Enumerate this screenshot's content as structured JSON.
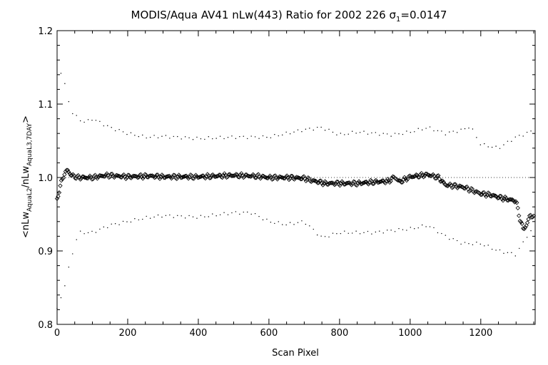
{
  "chart_data": {
    "type": "scatter",
    "title_parts": {
      "main": "MODIS/Aqua AV41 nLw(443) Ratio for 2002 226 ",
      "sigma": "σ",
      "sigma_sub": "1",
      "value": "=0.0147"
    },
    "xlabel": "Scan Pixel",
    "ylabel_parts": {
      "open": "<nLw",
      "sub1": "AquaL2",
      "mid": "/nLw",
      "sub2": "AquaL3,7DAY",
      "close": ">"
    },
    "xlim": [
      0,
      1354
    ],
    "ylim": [
      0.8,
      1.2
    ],
    "x_ticks": [
      0,
      200,
      400,
      600,
      800,
      1000,
      1200
    ],
    "y_ticks": [
      0.8,
      0.9,
      1.0,
      1.1,
      1.2
    ],
    "x_tick_labels": [
      "0",
      "200",
      "400",
      "600",
      "800",
      "1000",
      "1200"
    ],
    "y_tick_labels": [
      "0.8",
      "0.9",
      "1.0",
      "1.1",
      "1.2"
    ],
    "reference_line": 1.0,
    "series": [
      {
        "role": "mean ratio (diamond markers)",
        "x": [
          0,
          10,
          20,
          30,
          40,
          60,
          80,
          100,
          140,
          200,
          260,
          300,
          400,
          500,
          560,
          600,
          650,
          700,
          720,
          760,
          800,
          850,
          900,
          940,
          955,
          970,
          1000,
          1050,
          1080,
          1100,
          1150,
          1200,
          1230,
          1260,
          1300,
          1310,
          1320,
          1330,
          1340,
          1350
        ],
        "y": [
          0.97,
          0.99,
          1.005,
          1.01,
          1.003,
          1.0,
          1.0,
          1.0,
          1.003,
          1.001,
          1.002,
          1.001,
          1.001,
          1.003,
          1.002,
          1.0,
          1.0,
          0.999,
          0.996,
          0.992,
          0.992,
          0.992,
          0.994,
          0.995,
          1.001,
          0.994,
          1.001,
          1.004,
          1.0,
          0.99,
          0.987,
          0.978,
          0.976,
          0.972,
          0.968,
          0.945,
          0.93,
          0.935,
          0.95,
          0.945
        ]
      },
      {
        "role": "upper envelope (dots)",
        "x": [
          0,
          20,
          40,
          60,
          80,
          100,
          150,
          200,
          250,
          300,
          400,
          500,
          600,
          650,
          700,
          750,
          800,
          850,
          900,
          950,
          1000,
          1050,
          1100,
          1150,
          1170,
          1200,
          1250,
          1300,
          1330,
          1350
        ],
        "y": [
          1.16,
          1.13,
          1.09,
          1.08,
          1.075,
          1.08,
          1.068,
          1.06,
          1.055,
          1.056,
          1.053,
          1.055,
          1.055,
          1.06,
          1.065,
          1.068,
          1.058,
          1.062,
          1.06,
          1.058,
          1.062,
          1.068,
          1.06,
          1.065,
          1.07,
          1.045,
          1.04,
          1.055,
          1.06,
          1.065
        ]
      },
      {
        "role": "lower envelope (dots)",
        "x": [
          0,
          20,
          40,
          60,
          80,
          100,
          150,
          200,
          250,
          300,
          400,
          500,
          550,
          600,
          650,
          700,
          750,
          800,
          850,
          900,
          950,
          1000,
          1050,
          1100,
          1150,
          1200,
          1250,
          1300,
          1330,
          1350
        ],
        "y": [
          0.82,
          0.85,
          0.89,
          0.925,
          0.925,
          0.925,
          0.935,
          0.94,
          0.945,
          0.948,
          0.946,
          0.952,
          0.952,
          0.94,
          0.936,
          0.94,
          0.918,
          0.925,
          0.925,
          0.925,
          0.928,
          0.93,
          0.935,
          0.92,
          0.91,
          0.91,
          0.9,
          0.895,
          0.92,
          0.93
        ]
      }
    ]
  }
}
